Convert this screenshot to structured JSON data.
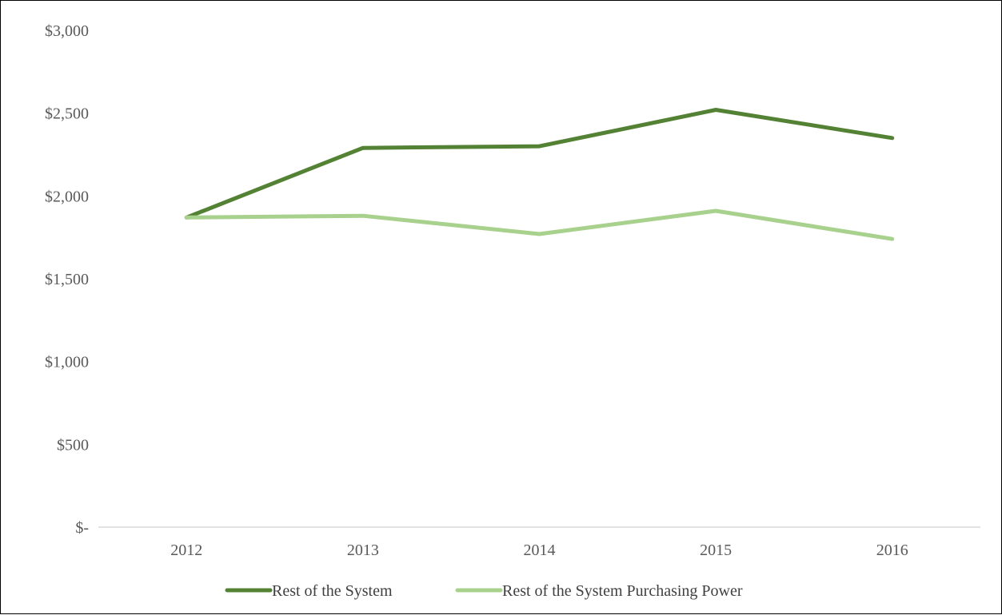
{
  "chart_data": {
    "type": "line",
    "title": "",
    "xlabel": "",
    "ylabel": "",
    "categories": [
      "2012",
      "2013",
      "2014",
      "2015",
      "2016"
    ],
    "ylim": [
      0,
      3000
    ],
    "y_ticks": [
      0,
      500,
      1000,
      1500,
      2000,
      2500,
      3000
    ],
    "y_tick_labels": [
      "$-",
      "$500",
      "$1,000",
      "$1,500",
      "$2,000",
      "$2,500",
      "$3,000"
    ],
    "grid": false,
    "legend_position": "bottom",
    "series": [
      {
        "name": "Rest of the System",
        "values": [
          1870,
          2290,
          2300,
          2520,
          2350
        ],
        "color": "#548235"
      },
      {
        "name": "Rest of the System Purchasing Power",
        "values": [
          1870,
          1880,
          1770,
          1910,
          1740
        ],
        "color": "#A9D18E"
      }
    ],
    "axis_color": "#D9D9D9"
  }
}
